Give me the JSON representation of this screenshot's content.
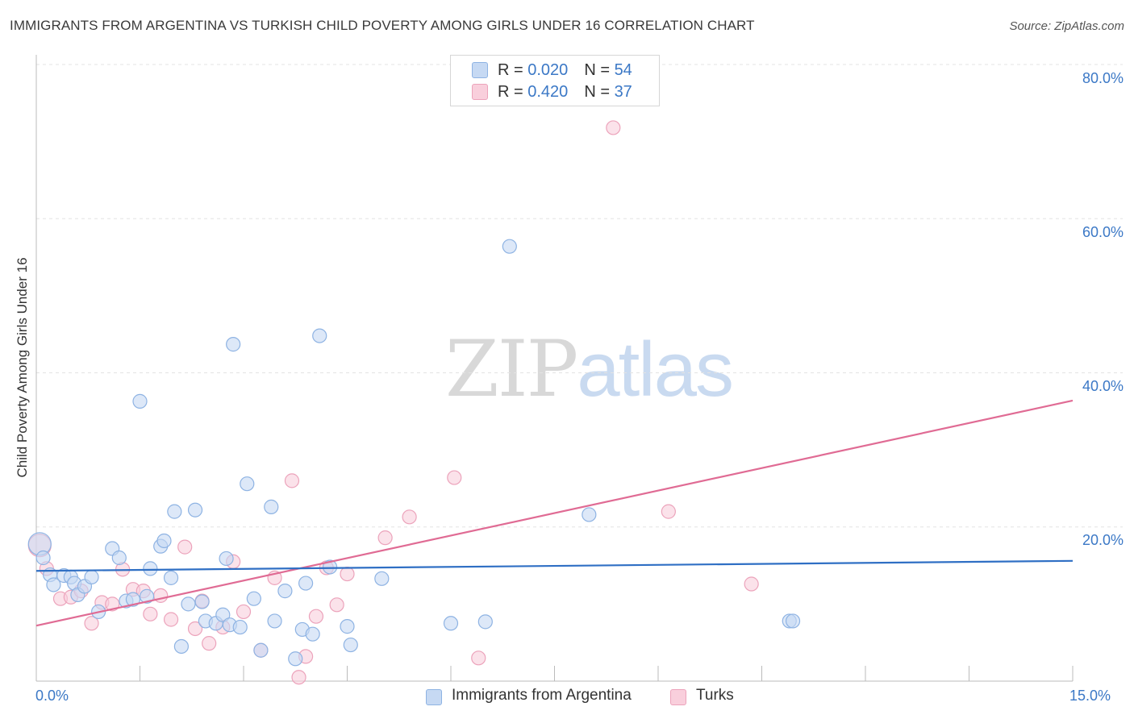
{
  "header": {
    "title": "IMMIGRANTS FROM ARGENTINA VS TURKISH CHILD POVERTY AMONG GIRLS UNDER 16 CORRELATION CHART",
    "source": "Source: ZipAtlas.com"
  },
  "watermark": {
    "zip": "ZIP",
    "atlas": "atlas"
  },
  "legend_top": {
    "rows": [
      {
        "r_label": "R = ",
        "r_value": "0.020",
        "n_label": "N = ",
        "n_value": "54"
      },
      {
        "r_label": "R = ",
        "r_value": "0.420",
        "n_label": "N = ",
        "n_value": "37"
      }
    ]
  },
  "legend_bottom": {
    "series1": "Immigrants from Argentina",
    "series2": "Turks"
  },
  "y_ticks": [
    "80.0%",
    "60.0%",
    "40.0%",
    "20.0%"
  ],
  "x_ticks": {
    "min": "0.0%",
    "max": "15.0%"
  },
  "ylabel": "Child Poverty Among Girls Under 16",
  "colors": {
    "blue_fill": "#c6d9f3",
    "blue_stroke": "#8eb3e3",
    "blue_line": "#2f6fc4",
    "pink_fill": "#f9cfdc",
    "pink_stroke": "#eca3bb",
    "pink_line": "#e06b94",
    "tick_text": "#3b78c6",
    "grid": "#e3e3e3"
  },
  "chart_data": {
    "type": "scatter",
    "title": "IMMIGRANTS FROM ARGENTINA VS TURKISH CHILD POVERTY AMONG GIRLS UNDER 16 CORRELATION CHART",
    "xlabel": "",
    "ylabel": "Child Poverty Among Girls Under 16",
    "xlim": [
      0,
      15
    ],
    "ylim": [
      0,
      80
    ],
    "grid": true,
    "legend": "bottom-center",
    "series": [
      {
        "name": "Immigrants from Argentina",
        "r": 0.02,
        "n": 54,
        "trend": [
          [
            0,
            14.3
          ],
          [
            15,
            15.6
          ]
        ],
        "points": [
          [
            0.05,
            17.8
          ],
          [
            0.1,
            16.0
          ],
          [
            0.2,
            13.8
          ],
          [
            0.25,
            12.5
          ],
          [
            0.4,
            13.7
          ],
          [
            0.5,
            13.5
          ],
          [
            0.55,
            12.7
          ],
          [
            0.6,
            11.2
          ],
          [
            0.7,
            12.3
          ],
          [
            0.8,
            13.5
          ],
          [
            0.9,
            9.0
          ],
          [
            1.1,
            17.2
          ],
          [
            1.2,
            16.0
          ],
          [
            1.3,
            10.4
          ],
          [
            1.4,
            10.6
          ],
          [
            1.5,
            36.3
          ],
          [
            1.6,
            11.0
          ],
          [
            1.65,
            14.6
          ],
          [
            1.8,
            17.5
          ],
          [
            1.85,
            18.2
          ],
          [
            1.95,
            13.4
          ],
          [
            2.0,
            22.0
          ],
          [
            2.1,
            4.5
          ],
          [
            2.2,
            10.0
          ],
          [
            2.3,
            22.2
          ],
          [
            2.4,
            10.3
          ],
          [
            2.45,
            7.8
          ],
          [
            2.6,
            7.5
          ],
          [
            2.7,
            8.6
          ],
          [
            2.75,
            15.9
          ],
          [
            2.8,
            7.3
          ],
          [
            2.85,
            43.7
          ],
          [
            2.95,
            7.0
          ],
          [
            3.05,
            25.6
          ],
          [
            3.15,
            10.7
          ],
          [
            3.25,
            4.0
          ],
          [
            3.4,
            22.6
          ],
          [
            3.45,
            7.8
          ],
          [
            3.6,
            11.7
          ],
          [
            3.75,
            2.9
          ],
          [
            3.85,
            6.7
          ],
          [
            3.9,
            12.7
          ],
          [
            4.0,
            6.1
          ],
          [
            4.1,
            44.8
          ],
          [
            4.25,
            14.8
          ],
          [
            4.5,
            7.1
          ],
          [
            4.55,
            4.7
          ],
          [
            5.0,
            13.3
          ],
          [
            6.0,
            7.5
          ],
          [
            6.5,
            7.7
          ],
          [
            6.85,
            56.4
          ],
          [
            8.0,
            21.6
          ],
          [
            10.9,
            7.8
          ],
          [
            10.95,
            7.8
          ]
        ]
      },
      {
        "name": "Turks",
        "r": 0.42,
        "n": 37,
        "trend": [
          [
            0,
            7.2
          ],
          [
            15,
            36.4
          ]
        ],
        "points": [
          [
            0.05,
            17.6
          ],
          [
            0.15,
            14.6
          ],
          [
            0.35,
            10.7
          ],
          [
            0.5,
            10.9
          ],
          [
            0.65,
            11.7
          ],
          [
            0.8,
            7.5
          ],
          [
            0.95,
            10.2
          ],
          [
            1.1,
            10.0
          ],
          [
            1.25,
            14.5
          ],
          [
            1.4,
            11.9
          ],
          [
            1.55,
            11.7
          ],
          [
            1.65,
            8.7
          ],
          [
            1.8,
            11.1
          ],
          [
            1.95,
            8.0
          ],
          [
            2.15,
            17.4
          ],
          [
            2.3,
            6.8
          ],
          [
            2.4,
            10.4
          ],
          [
            2.5,
            4.9
          ],
          [
            2.7,
            7.0
          ],
          [
            2.85,
            15.5
          ],
          [
            3.0,
            9.0
          ],
          [
            3.25,
            4.0
          ],
          [
            3.45,
            13.4
          ],
          [
            3.7,
            26.0
          ],
          [
            3.8,
            0.5
          ],
          [
            3.9,
            3.2
          ],
          [
            4.05,
            8.4
          ],
          [
            4.2,
            14.7
          ],
          [
            4.35,
            9.9
          ],
          [
            4.5,
            13.9
          ],
          [
            5.05,
            18.6
          ],
          [
            5.4,
            21.3
          ],
          [
            6.05,
            26.4
          ],
          [
            6.4,
            3.0
          ],
          [
            8.35,
            71.8
          ],
          [
            9.15,
            22.0
          ],
          [
            10.35,
            12.6
          ]
        ]
      }
    ]
  }
}
